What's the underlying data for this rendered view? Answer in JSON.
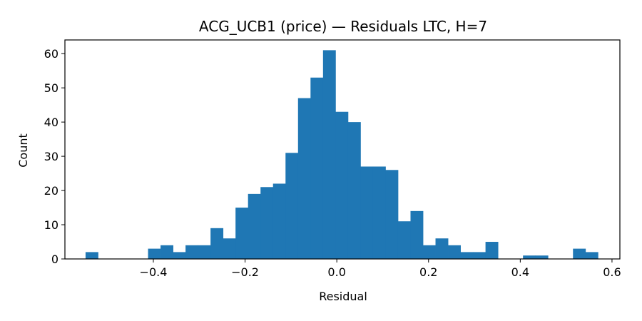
{
  "chart_data": {
    "type": "bar",
    "title": "ACG_UCB1 (price) — Residuals LTC, H=7",
    "xlabel": "Residual",
    "ylabel": "Count",
    "xlim": [
      -0.5928,
      0.6172
    ],
    "ylim": [
      0,
      64
    ],
    "bar_color": "#1f77b4",
    "grid": false,
    "xticks": [
      -0.4,
      -0.2,
      0.0,
      0.2,
      0.4,
      0.6
    ],
    "xtick_labels": [
      "−0.4",
      "−0.2",
      "0.0",
      "0.2",
      "0.4",
      "0.6"
    ],
    "yticks": [
      0,
      10,
      20,
      30,
      40,
      50,
      60
    ],
    "ytick_labels": [
      "0",
      "10",
      "20",
      "30",
      "40",
      "50",
      "60"
    ],
    "bin_start": -0.5478,
    "bin_width": 0.02725,
    "counts": [
      2,
      0,
      0,
      0,
      0,
      3,
      4,
      2,
      4,
      4,
      9,
      6,
      15,
      19,
      21,
      22,
      31,
      47,
      53,
      61,
      43,
      40,
      27,
      27,
      26,
      11,
      14,
      4,
      6,
      4,
      2,
      2,
      5,
      0,
      0,
      1,
      1,
      0,
      0,
      3,
      2
    ]
  }
}
